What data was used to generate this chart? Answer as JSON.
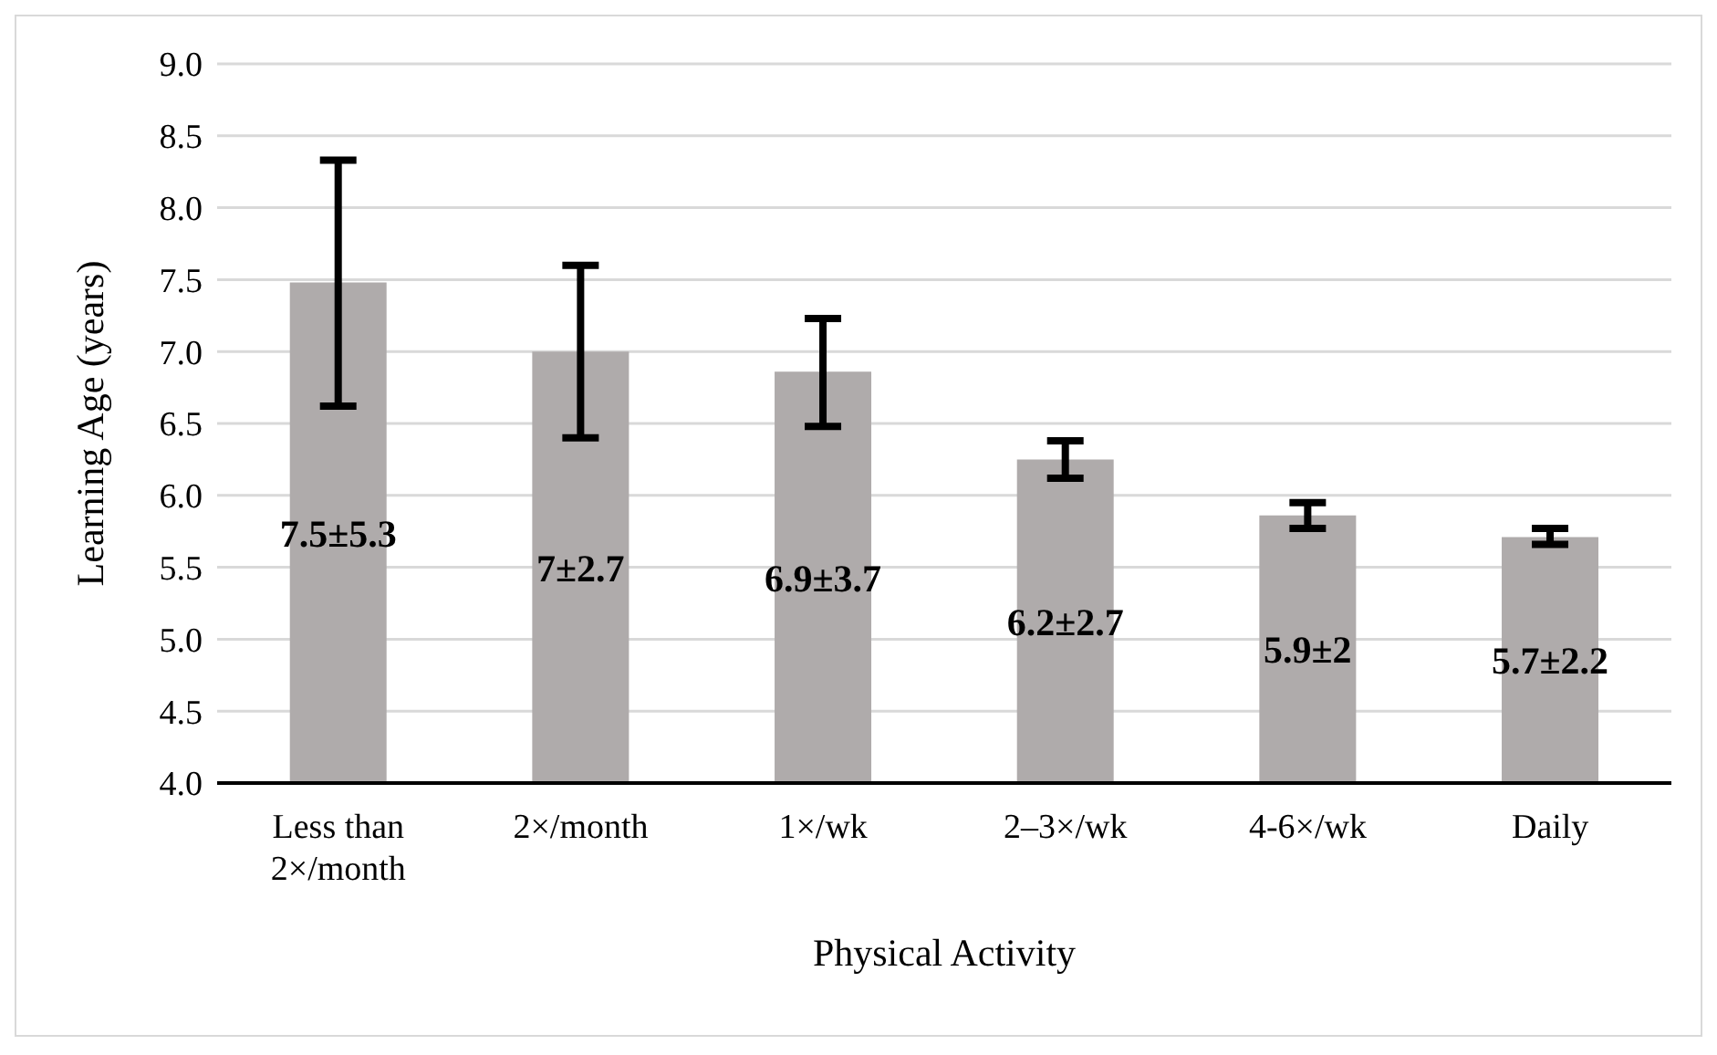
{
  "chart_data": {
    "type": "bar",
    "categories": [
      "Less than 2×/month",
      "2×/month",
      "1×/wk",
      "2–3×/wk",
      "4-6×/wk",
      "Daily"
    ],
    "values": [
      7.48,
      7.0,
      6.86,
      6.25,
      5.86,
      5.71
    ],
    "errors": [
      [
        6.62,
        8.33
      ],
      [
        6.4,
        7.6
      ],
      [
        6.48,
        7.23
      ],
      [
        6.12,
        6.38
      ],
      [
        5.77,
        5.95
      ],
      [
        5.66,
        5.77
      ]
    ],
    "value_labels": [
      "7.5±5.3",
      "7±2.7",
      "6.9±3.7",
      "6.2±2.7",
      "5.9±2",
      "5.7±2.2"
    ],
    "color": "#afabab",
    "xlabel": "Physical Activity",
    "ylabel": "Learning Age (years)",
    "ylim": [
      4.0,
      9.0
    ],
    "yticks": [
      {
        "value": 4,
        "label": "4.0"
      },
      {
        "value": 4.5,
        "label": "4.5"
      },
      {
        "value": 5,
        "label": "5.0"
      },
      {
        "value": 5.5,
        "label": "5.5"
      },
      {
        "value": 6,
        "label": "6.0"
      },
      {
        "value": 6.5,
        "label": "6.5"
      },
      {
        "value": 7,
        "label": "7.0"
      },
      {
        "value": 7.5,
        "label": "7.5"
      },
      {
        "value": 8,
        "label": "8.0"
      },
      {
        "value": 8.5,
        "label": "8.5"
      },
      {
        "value": 9,
        "label": "9.0"
      }
    ],
    "grid": "y"
  }
}
